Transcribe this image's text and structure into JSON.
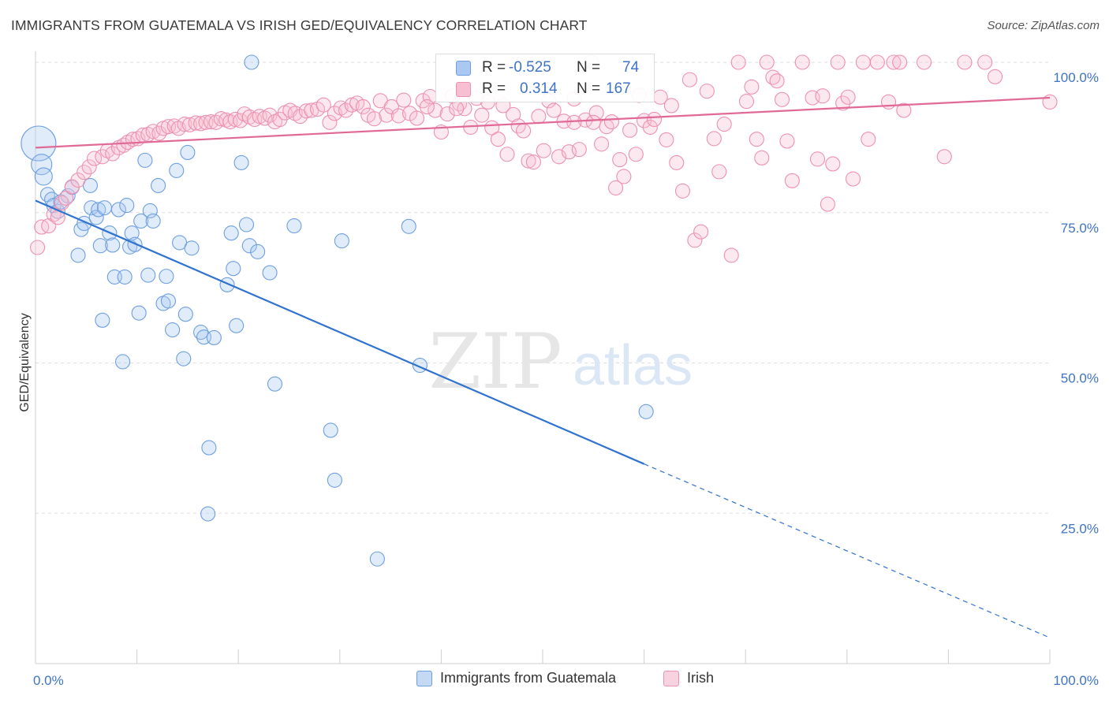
{
  "title": "IMMIGRANTS FROM GUATEMALA VS IRISH GED/EQUIVALENCY CORRELATION CHART",
  "source": "Source: ZipAtlas.com",
  "watermark": {
    "zip": "ZIP",
    "atlas": "atlas"
  },
  "stats": [
    {
      "r_label": "R =",
      "r_value": "-0.525",
      "n_label": "N =",
      "n_value": "74",
      "color": "#aac8f0",
      "border": "#6d9fe0"
    },
    {
      "r_label": "R =",
      "r_value": "0.314",
      "n_label": "N =",
      "n_value": "167",
      "color": "#f7bfd2",
      "border": "#ee90b0"
    }
  ],
  "legend": [
    {
      "label": "Immigrants from Guatemala",
      "color": "#c5d9f3",
      "border": "#6d9fe0"
    },
    {
      "label": "Irish",
      "color": "#f9d2df",
      "border": "#ee90b0"
    }
  ],
  "chart_data": {
    "type": "scatter",
    "ylabel": "GED/Equivalency",
    "xlim": [
      0,
      100
    ],
    "ylim": [
      0,
      100
    ],
    "x_tick_labels": [
      "0.0%",
      "100.0%"
    ],
    "y_tick_values": [
      25,
      50,
      75,
      100
    ],
    "y_tick_labels": [
      "25.0%",
      "50.0%",
      "75.0%",
      "100.0%"
    ],
    "grid": true,
    "series": [
      {
        "name": "Immigrants from Guatemala",
        "color": "#6d9fe0",
        "fill": "#aac8f0",
        "trend": {
          "x0": 0,
          "y0": 77.0,
          "x1": 60.0,
          "y1": 33.2,
          "dash_x1": 100,
          "dash_y1": 4.3
        },
        "points": [
          [
            0.3,
            86.5,
            22
          ],
          [
            0.6,
            83,
            13
          ],
          [
            0.8,
            81,
            11
          ],
          [
            1.2,
            78,
            9
          ],
          [
            1.6,
            77.2,
            9
          ],
          [
            1.8,
            76.2,
            9
          ],
          [
            2.2,
            75.2,
            9
          ],
          [
            2.5,
            76.8,
            9
          ],
          [
            3.2,
            77.8,
            9
          ],
          [
            3.6,
            79.2,
            9
          ],
          [
            5.4,
            79.5,
            9
          ],
          [
            4.2,
            67.9,
            9
          ],
          [
            4.5,
            72.2,
            9
          ],
          [
            4.8,
            73.2,
            9
          ],
          [
            5.5,
            75.8,
            9
          ],
          [
            6,
            74.2,
            9
          ],
          [
            6.2,
            75.5,
            9
          ],
          [
            6.4,
            69.5,
            9
          ],
          [
            6.6,
            57.1,
            9
          ],
          [
            6.8,
            75.8,
            9
          ],
          [
            7.3,
            71.6,
            9
          ],
          [
            7.6,
            69.6,
            9
          ],
          [
            7.8,
            64.3,
            9
          ],
          [
            8.2,
            75.5,
            9
          ],
          [
            8.6,
            50.2,
            9
          ],
          [
            8.8,
            64.3,
            9
          ],
          [
            9.0,
            76.2,
            9
          ],
          [
            9.3,
            69.3,
            9
          ],
          [
            9.5,
            71.6,
            9
          ],
          [
            9.8,
            69.7,
            9
          ],
          [
            10.2,
            58.3,
            9
          ],
          [
            10.4,
            73.6,
            9
          ],
          [
            10.8,
            83.7,
            9
          ],
          [
            11.1,
            64.6,
            9
          ],
          [
            11.3,
            75.3,
            9
          ],
          [
            11.6,
            73.6,
            9
          ],
          [
            12.1,
            79.5,
            9
          ],
          [
            12.6,
            59.9,
            9
          ],
          [
            12.9,
            64.4,
            9
          ],
          [
            13.1,
            60.3,
            9
          ],
          [
            13.5,
            55.5,
            9
          ],
          [
            13.9,
            82.0,
            9
          ],
          [
            14.2,
            70.0,
            9
          ],
          [
            14.6,
            50.7,
            9
          ],
          [
            14.8,
            58.1,
            9
          ],
          [
            15.0,
            85.0,
            9
          ],
          [
            15.4,
            69.1,
            9
          ],
          [
            16.3,
            55.1,
            9
          ],
          [
            16.6,
            54.3,
            9
          ],
          [
            17.1,
            35.9,
            9
          ],
          [
            17.0,
            24.9,
            9
          ],
          [
            17.6,
            54.2,
            9
          ],
          [
            18.9,
            63.0,
            9
          ],
          [
            19.3,
            71.6,
            9
          ],
          [
            19.5,
            65.7,
            9
          ],
          [
            19.8,
            56.2,
            9
          ],
          [
            20.3,
            83.3,
            9
          ],
          [
            20.8,
            73.0,
            9
          ],
          [
            21.1,
            69.5,
            9
          ],
          [
            21.3,
            100.0,
            9
          ],
          [
            21.9,
            68.5,
            9
          ],
          [
            23.1,
            65.0,
            9
          ],
          [
            23.6,
            46.5,
            9
          ],
          [
            25.5,
            72.8,
            9
          ],
          [
            29.1,
            38.8,
            9
          ],
          [
            29.5,
            30.5,
            9
          ],
          [
            30.2,
            70.3,
            9
          ],
          [
            33.7,
            17.4,
            9
          ],
          [
            36.8,
            72.7,
            9
          ],
          [
            37.9,
            49.6,
            9
          ],
          [
            60.2,
            41.9,
            9
          ]
        ]
      },
      {
        "name": "Irish",
        "color": "#ee90b0",
        "fill": "#f7bfd2",
        "trend": {
          "x0": 0,
          "y0": 85.8,
          "x1": 100,
          "y1": 94.1
        },
        "points": [
          [
            0.2,
            69.2,
            9
          ],
          [
            0.6,
            72.6,
            9
          ],
          [
            1.3,
            72.8,
            9
          ],
          [
            1.8,
            74.7,
            9
          ],
          [
            2.2,
            74.2,
            9
          ],
          [
            2.6,
            76.6,
            9
          ],
          [
            3.0,
            77.4,
            9
          ],
          [
            3.6,
            79.3,
            9
          ],
          [
            4.2,
            80.4,
            9
          ],
          [
            4.8,
            81.7,
            9
          ],
          [
            5.3,
            82.6,
            9
          ],
          [
            5.8,
            84.0,
            9
          ],
          [
            6.6,
            84.3,
            9
          ],
          [
            7.1,
            85.3,
            9
          ],
          [
            7.6,
            84.8,
            9
          ],
          [
            8.2,
            85.8,
            9
          ],
          [
            8.7,
            86.2,
            9
          ],
          [
            9.1,
            86.7,
            9
          ],
          [
            9.6,
            87.2,
            9
          ],
          [
            10.1,
            87.3,
            9
          ],
          [
            10.6,
            87.9,
            9
          ],
          [
            11.1,
            88.0,
            9
          ],
          [
            11.6,
            88.5,
            9
          ],
          [
            12.2,
            88.2,
            9
          ],
          [
            12.6,
            89.0,
            9
          ],
          [
            13.1,
            89.3,
            9
          ],
          [
            13.7,
            89.4,
            9
          ],
          [
            14.1,
            89.0,
            9
          ],
          [
            14.7,
            89.7,
            9
          ],
          [
            15.2,
            89.6,
            9
          ],
          [
            15.8,
            89.9,
            9
          ],
          [
            16.3,
            89.8,
            9
          ],
          [
            16.8,
            90.0,
            9
          ],
          [
            17.3,
            90.1,
            9
          ],
          [
            17.8,
            90.0,
            9
          ],
          [
            18.3,
            90.6,
            9
          ],
          [
            18.8,
            90.4,
            9
          ],
          [
            19.2,
            90.1,
            9
          ],
          [
            19.7,
            90.5,
            9
          ],
          [
            20.2,
            90.3,
            9
          ],
          [
            20.6,
            91.4,
            9
          ],
          [
            21.1,
            90.9,
            9
          ],
          [
            21.6,
            90.5,
            9
          ],
          [
            22.1,
            91.0,
            9
          ],
          [
            22.6,
            90.7,
            9
          ],
          [
            23.1,
            91.2,
            9
          ],
          [
            23.6,
            90.1,
            9
          ],
          [
            24.1,
            90.5,
            9
          ],
          [
            24.6,
            91.6,
            9
          ],
          [
            25.1,
            92.0,
            9
          ],
          [
            25.6,
            91.5,
            9
          ],
          [
            26.1,
            91.0,
            9
          ],
          [
            26.7,
            91.9,
            9
          ],
          [
            27.2,
            92.0,
            9
          ],
          [
            27.8,
            92.2,
            9
          ],
          [
            28.4,
            92.9,
            9
          ],
          [
            29.0,
            90.0,
            9
          ],
          [
            29.5,
            91.5,
            9
          ],
          [
            30.1,
            92.4,
            9
          ],
          [
            30.6,
            92.0,
            9
          ],
          [
            31.2,
            92.9,
            9
          ],
          [
            31.7,
            93.2,
            9
          ],
          [
            32.3,
            92.6,
            9
          ],
          [
            32.8,
            91.2,
            9
          ],
          [
            33.4,
            90.6,
            9
          ],
          [
            34.0,
            93.6,
            9
          ],
          [
            34.6,
            91.2,
            9
          ],
          [
            35.1,
            92.6,
            9
          ],
          [
            35.8,
            91.1,
            9
          ],
          [
            36.3,
            93.7,
            9
          ],
          [
            36.9,
            91.5,
            9
          ],
          [
            37.6,
            90.7,
            9
          ],
          [
            38.2,
            93.6,
            9
          ],
          [
            38.9,
            94.3,
            9
          ],
          [
            39.4,
            92.0,
            9
          ],
          [
            40.0,
            88.4,
            9
          ],
          [
            40.6,
            91.4,
            9
          ],
          [
            41.1,
            94.4,
            9
          ],
          [
            41.8,
            93.1,
            9
          ],
          [
            42.3,
            92.3,
            9
          ],
          [
            42.9,
            89.2,
            9
          ],
          [
            43.5,
            94.0,
            9
          ],
          [
            44.0,
            91.2,
            9
          ],
          [
            44.6,
            93.4,
            9
          ],
          [
            45.0,
            89.1,
            9
          ],
          [
            45.6,
            87.2,
            9
          ],
          [
            46.1,
            92.8,
            9
          ],
          [
            46.5,
            84.7,
            9
          ],
          [
            47.1,
            91.3,
            9
          ],
          [
            47.6,
            89.4,
            9
          ],
          [
            48.1,
            88.6,
            9
          ],
          [
            48.6,
            83.6,
            9
          ],
          [
            49.1,
            83.4,
            9
          ],
          [
            49.6,
            91.0,
            9
          ],
          [
            50.1,
            85.3,
            9
          ],
          [
            50.6,
            93.6,
            9
          ],
          [
            51.1,
            92.0,
            9
          ],
          [
            51.6,
            84.3,
            9
          ],
          [
            52.1,
            90.2,
            9
          ],
          [
            52.6,
            85.1,
            9
          ],
          [
            53.1,
            93.9,
            9
          ],
          [
            53.6,
            85.5,
            9
          ],
          [
            54.2,
            90.4,
            9
          ],
          [
            54.8,
            100.0,
            9
          ],
          [
            55.3,
            91.6,
            9
          ],
          [
            55.8,
            86.4,
            9
          ],
          [
            56.3,
            89.3,
            9
          ],
          [
            56.8,
            90.1,
            9
          ],
          [
            57.2,
            79.1,
            9
          ],
          [
            57.6,
            83.8,
            9
          ],
          [
            58.0,
            81.0,
            9
          ],
          [
            58.6,
            88.7,
            9
          ],
          [
            59.2,
            84.7,
            9
          ],
          [
            59.5,
            94.5,
            9
          ],
          [
            60.0,
            90.3,
            9
          ],
          [
            60.6,
            89.2,
            9
          ],
          [
            61.0,
            90.5,
            9
          ],
          [
            61.6,
            94.2,
            9
          ],
          [
            62.2,
            87.1,
            9
          ],
          [
            62.7,
            92.8,
            9
          ],
          [
            63.2,
            83.3,
            9
          ],
          [
            63.8,
            78.6,
            9
          ],
          [
            64.5,
            97.1,
            9
          ],
          [
            65.0,
            70.4,
            9
          ],
          [
            65.6,
            71.8,
            9
          ],
          [
            66.2,
            95.2,
            9
          ],
          [
            66.9,
            87.3,
            9
          ],
          [
            67.4,
            81.8,
            9
          ],
          [
            67.9,
            89.7,
            9
          ],
          [
            68.6,
            67.9,
            9
          ],
          [
            69.3,
            100.0,
            9
          ],
          [
            70.1,
            93.5,
            9
          ],
          [
            70.6,
            95.9,
            9
          ],
          [
            71.1,
            87.2,
            9
          ],
          [
            71.6,
            84.1,
            9
          ],
          [
            72.1,
            100.0,
            9
          ],
          [
            72.7,
            97.5,
            9
          ],
          [
            73.1,
            96.9,
            9
          ],
          [
            73.6,
            93.8,
            9
          ],
          [
            74.1,
            86.9,
            9
          ],
          [
            74.6,
            80.3,
            9
          ],
          [
            75.6,
            100.0,
            9
          ],
          [
            76.6,
            94.1,
            9
          ],
          [
            77.1,
            83.9,
            9
          ],
          [
            77.6,
            94.4,
            9
          ],
          [
            78.1,
            76.4,
            9
          ],
          [
            78.6,
            83.1,
            9
          ],
          [
            79.1,
            100.0,
            9
          ],
          [
            79.6,
            93.2,
            9
          ],
          [
            80.1,
            94.2,
            9
          ],
          [
            80.6,
            80.6,
            9
          ],
          [
            81.6,
            100.0,
            9
          ],
          [
            82.1,
            87.2,
            9
          ],
          [
            83.0,
            100.0,
            9
          ],
          [
            84.1,
            93.4,
            9
          ],
          [
            84.6,
            100.0,
            9
          ],
          [
            85.2,
            100.0,
            9
          ],
          [
            85.6,
            92.0,
            9
          ],
          [
            87.6,
            100.0,
            9
          ],
          [
            89.6,
            84.3,
            9
          ],
          [
            91.6,
            100.0,
            9
          ],
          [
            93.6,
            100.0,
            9
          ],
          [
            94.6,
            97.6,
            9
          ],
          [
            100.0,
            93.4,
            9
          ],
          [
            53.1,
            90.0,
            9
          ],
          [
            55.0,
            90.0,
            9
          ],
          [
            41.5,
            92.3,
            9
          ],
          [
            38.6,
            92.6,
            9
          ]
        ]
      }
    ]
  }
}
